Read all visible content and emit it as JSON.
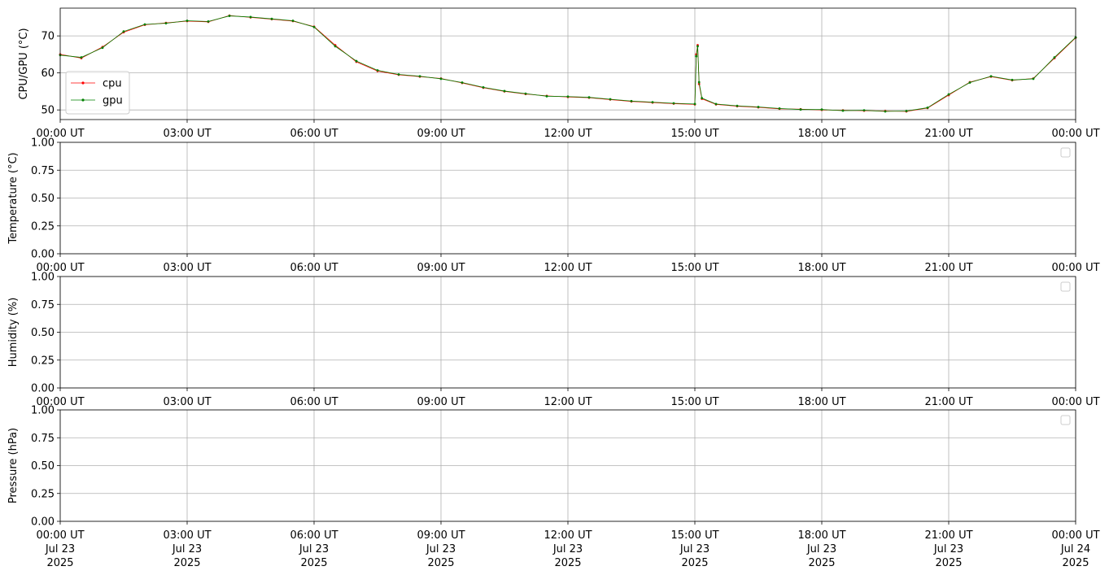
{
  "chart_data": [
    {
      "type": "line",
      "ylabel": "CPU/GPU (°C)",
      "x": [
        "2025-07-23T00:00",
        "2025-07-23T00:30",
        "2025-07-23T01:00",
        "2025-07-23T01:30",
        "2025-07-23T02:00",
        "2025-07-23T02:30",
        "2025-07-23T03:00",
        "2025-07-23T03:30",
        "2025-07-23T04:00",
        "2025-07-23T04:30",
        "2025-07-23T05:00",
        "2025-07-23T05:30",
        "2025-07-23T06:00",
        "2025-07-23T06:30",
        "2025-07-23T07:00",
        "2025-07-23T07:30",
        "2025-07-23T08:00",
        "2025-07-23T08:30",
        "2025-07-23T09:00",
        "2025-07-23T09:30",
        "2025-07-23T10:00",
        "2025-07-23T10:30",
        "2025-07-23T11:00",
        "2025-07-23T11:30",
        "2025-07-23T12:00",
        "2025-07-23T12:30",
        "2025-07-23T13:00",
        "2025-07-23T13:30",
        "2025-07-23T14:00",
        "2025-07-23T14:30",
        "2025-07-23T15:00",
        "2025-07-23T15:02",
        "2025-07-23T15:04",
        "2025-07-23T15:06",
        "2025-07-23T15:10",
        "2025-07-23T15:30",
        "2025-07-23T16:00",
        "2025-07-23T16:30",
        "2025-07-23T17:00",
        "2025-07-23T17:30",
        "2025-07-23T18:00",
        "2025-07-23T18:30",
        "2025-07-23T19:00",
        "2025-07-23T19:30",
        "2025-07-23T20:00",
        "2025-07-23T20:30",
        "2025-07-23T21:00",
        "2025-07-23T21:30",
        "2025-07-23T22:00",
        "2025-07-23T22:30",
        "2025-07-23T23:00",
        "2025-07-23T23:30",
        "2025-07-24T00:00"
      ],
      "series": [
        {
          "name": "cpu",
          "color": "#ff0000",
          "values": [
            65,
            64,
            67,
            71,
            73,
            73.5,
            74,
            73.8,
            75.5,
            75,
            74.5,
            74,
            72.5,
            67.5,
            63,
            60.5,
            59.5,
            59,
            58.5,
            57.3,
            56,
            55,
            54.3,
            53.8,
            53.5,
            53.3,
            52.8,
            52.3,
            52,
            51.7,
            51.5,
            65,
            67.5,
            57,
            53,
            51.5,
            51,
            50.7,
            50.3,
            50.2,
            50,
            49.9,
            49.8,
            49.7,
            49.6,
            50.5,
            54,
            57.5,
            59,
            58,
            58.5,
            64,
            69.5
          ]
        },
        {
          "name": "gpu",
          "color": "#008000",
          "values": [
            64.8,
            64.2,
            66.8,
            71.2,
            73.1,
            73.4,
            74.1,
            73.9,
            75.4,
            75.1,
            74.6,
            74.1,
            72.4,
            67.2,
            63.2,
            60.7,
            59.6,
            59.1,
            58.4,
            57.4,
            56.1,
            55.1,
            54.4,
            53.7,
            53.6,
            53.4,
            52.9,
            52.4,
            52.1,
            51.8,
            51.6,
            64.5,
            67.2,
            57.5,
            53.2,
            51.6,
            51.1,
            50.8,
            50.4,
            50.1,
            50.1,
            49.8,
            49.9,
            49.6,
            49.7,
            50.6,
            54.2,
            57.4,
            59.1,
            58.1,
            58.4,
            64.2,
            69.6
          ]
        }
      ],
      "xlim": [
        "2025-07-23T00:00",
        "2025-07-24T00:00"
      ],
      "xticks": [
        {
          "value": "2025-07-23T00:00",
          "label": "00:00 UT"
        },
        {
          "value": "2025-07-23T03:00",
          "label": "03:00 UT"
        },
        {
          "value": "2025-07-23T06:00",
          "label": "06:00 UT"
        },
        {
          "value": "2025-07-23T09:00",
          "label": "09:00 UT"
        },
        {
          "value": "2025-07-23T12:00",
          "label": "12:00 UT"
        },
        {
          "value": "2025-07-23T15:00",
          "label": "15:00 UT"
        },
        {
          "value": "2025-07-23T18:00",
          "label": "18:00 UT"
        },
        {
          "value": "2025-07-23T21:00",
          "label": "21:00 UT"
        },
        {
          "value": "2025-07-24T00:00",
          "label": "00:00 UT"
        }
      ],
      "ylim": [
        47.4,
        77.5
      ],
      "yticks": [
        50,
        60,
        70
      ],
      "grid": true,
      "legend": "lower left"
    },
    {
      "type": "line",
      "ylabel": "Temperature (°C)",
      "series": [],
      "xlim": [
        "2025-07-23T00:00",
        "2025-07-24T00:00"
      ],
      "xticks": [
        {
          "value": "2025-07-23T00:00",
          "label": "00:00 UT"
        },
        {
          "value": "2025-07-23T03:00",
          "label": "03:00 UT"
        },
        {
          "value": "2025-07-23T06:00",
          "label": "06:00 UT"
        },
        {
          "value": "2025-07-23T09:00",
          "label": "09:00 UT"
        },
        {
          "value": "2025-07-23T12:00",
          "label": "12:00 UT"
        },
        {
          "value": "2025-07-23T15:00",
          "label": "15:00 UT"
        },
        {
          "value": "2025-07-23T18:00",
          "label": "18:00 UT"
        },
        {
          "value": "2025-07-23T21:00",
          "label": "21:00 UT"
        },
        {
          "value": "2025-07-24T00:00",
          "label": "00:00 UT"
        }
      ],
      "ylim": [
        0,
        1
      ],
      "yticks": [
        {
          "value": 0,
          "label": "0.00"
        },
        {
          "value": 0.25,
          "label": "0.25"
        },
        {
          "value": 0.5,
          "label": "0.50"
        },
        {
          "value": 0.75,
          "label": "0.75"
        },
        {
          "value": 1,
          "label": "1.00"
        }
      ],
      "grid": true,
      "legend": "upper right"
    },
    {
      "type": "line",
      "ylabel": "Humidity (%)",
      "series": [],
      "xlim": [
        "2025-07-23T00:00",
        "2025-07-24T00:00"
      ],
      "xticks": [
        {
          "value": "2025-07-23T00:00",
          "label": "00:00 UT"
        },
        {
          "value": "2025-07-23T03:00",
          "label": "03:00 UT"
        },
        {
          "value": "2025-07-23T06:00",
          "label": "06:00 UT"
        },
        {
          "value": "2025-07-23T09:00",
          "label": "09:00 UT"
        },
        {
          "value": "2025-07-23T12:00",
          "label": "12:00 UT"
        },
        {
          "value": "2025-07-23T15:00",
          "label": "15:00 UT"
        },
        {
          "value": "2025-07-23T18:00",
          "label": "18:00 UT"
        },
        {
          "value": "2025-07-23T21:00",
          "label": "21:00 UT"
        },
        {
          "value": "2025-07-24T00:00",
          "label": "00:00 UT"
        }
      ],
      "ylim": [
        0,
        1
      ],
      "yticks": [
        {
          "value": 0,
          "label": "0.00"
        },
        {
          "value": 0.25,
          "label": "0.25"
        },
        {
          "value": 0.5,
          "label": "0.50"
        },
        {
          "value": 0.75,
          "label": "0.75"
        },
        {
          "value": 1,
          "label": "1.00"
        }
      ],
      "grid": true,
      "legend": "upper right"
    },
    {
      "type": "line",
      "ylabel": "Pressure (hPa)",
      "series": [],
      "xlim": [
        "2025-07-23T00:00",
        "2025-07-24T00:00"
      ],
      "xticks": [
        {
          "value": "2025-07-23T00:00",
          "label": [
            "00:00 UT",
            "Jul 23",
            "2025"
          ]
        },
        {
          "value": "2025-07-23T03:00",
          "label": [
            "03:00 UT",
            "Jul 23",
            "2025"
          ]
        },
        {
          "value": "2025-07-23T06:00",
          "label": [
            "06:00 UT",
            "Jul 23",
            "2025"
          ]
        },
        {
          "value": "2025-07-23T09:00",
          "label": [
            "09:00 UT",
            "Jul 23",
            "2025"
          ]
        },
        {
          "value": "2025-07-23T12:00",
          "label": [
            "12:00 UT",
            "Jul 23",
            "2025"
          ]
        },
        {
          "value": "2025-07-23T15:00",
          "label": [
            "15:00 UT",
            "Jul 23",
            "2025"
          ]
        },
        {
          "value": "2025-07-23T18:00",
          "label": [
            "18:00 UT",
            "Jul 23",
            "2025"
          ]
        },
        {
          "value": "2025-07-23T21:00",
          "label": [
            "21:00 UT",
            "Jul 23",
            "2025"
          ]
        },
        {
          "value": "2025-07-24T00:00",
          "label": [
            "00:00 UT",
            "Jul 24",
            "2025"
          ]
        }
      ],
      "ylim": [
        0,
        1
      ],
      "yticks": [
        {
          "value": 0,
          "label": "0.00"
        },
        {
          "value": 0.25,
          "label": "0.25"
        },
        {
          "value": 0.5,
          "label": "0.50"
        },
        {
          "value": 0.75,
          "label": "0.75"
        },
        {
          "value": 1,
          "label": "1.00"
        }
      ],
      "grid": true,
      "legend": "upper right"
    }
  ]
}
